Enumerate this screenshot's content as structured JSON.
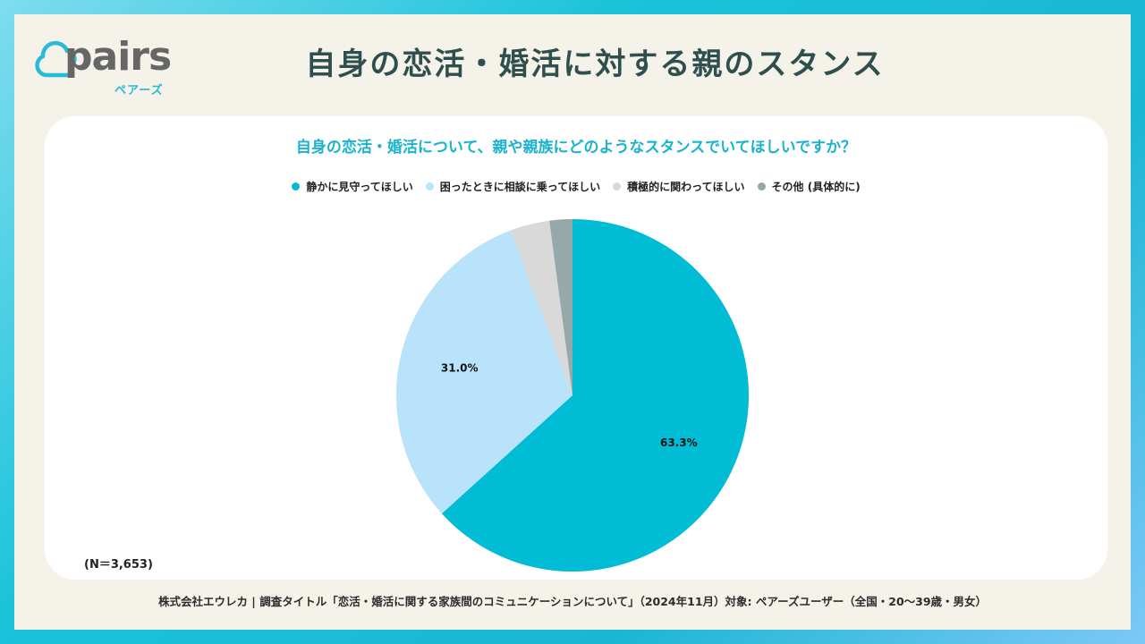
{
  "brand": {
    "word": "pairs",
    "kana": "ペアーズ",
    "colors": {
      "logo_text": "#666666",
      "logo_accent": "#26bcd6"
    }
  },
  "page_title": "自身の恋活・婚活に対する親のスタンス",
  "n_label": "(N＝3,653)",
  "footer": "株式会社エウレカ | 調査タイトル「恋活・婚活に関する家族間のコミュニケーションについて」（2024年11月）対象: ペアーズユーザー（全国・20〜39歳・男女）",
  "chart_data": {
    "type": "pie",
    "title": "自身の恋活・婚活について、親や親族にどのようなスタンスでいてほしいですか？",
    "legend_position": "top",
    "start_angle": "12 o'clock",
    "direction": "clockwise",
    "slices": [
      {
        "label": "静かに見守ってほしい",
        "value": 63.3,
        "display": "63.3%",
        "color": "#00bcd4"
      },
      {
        "label": "困ったときに相談に乗ってほしい",
        "value": 31.0,
        "display": "31.0%",
        "color": "#b8e3fb"
      },
      {
        "label": "積極的に関わってほしい",
        "value": 3.6,
        "display": "",
        "color": "#d9d9d9"
      },
      {
        "label": "その他 (具体的に)",
        "value": 2.1,
        "display": "",
        "color": "#96a8aa"
      }
    ]
  }
}
